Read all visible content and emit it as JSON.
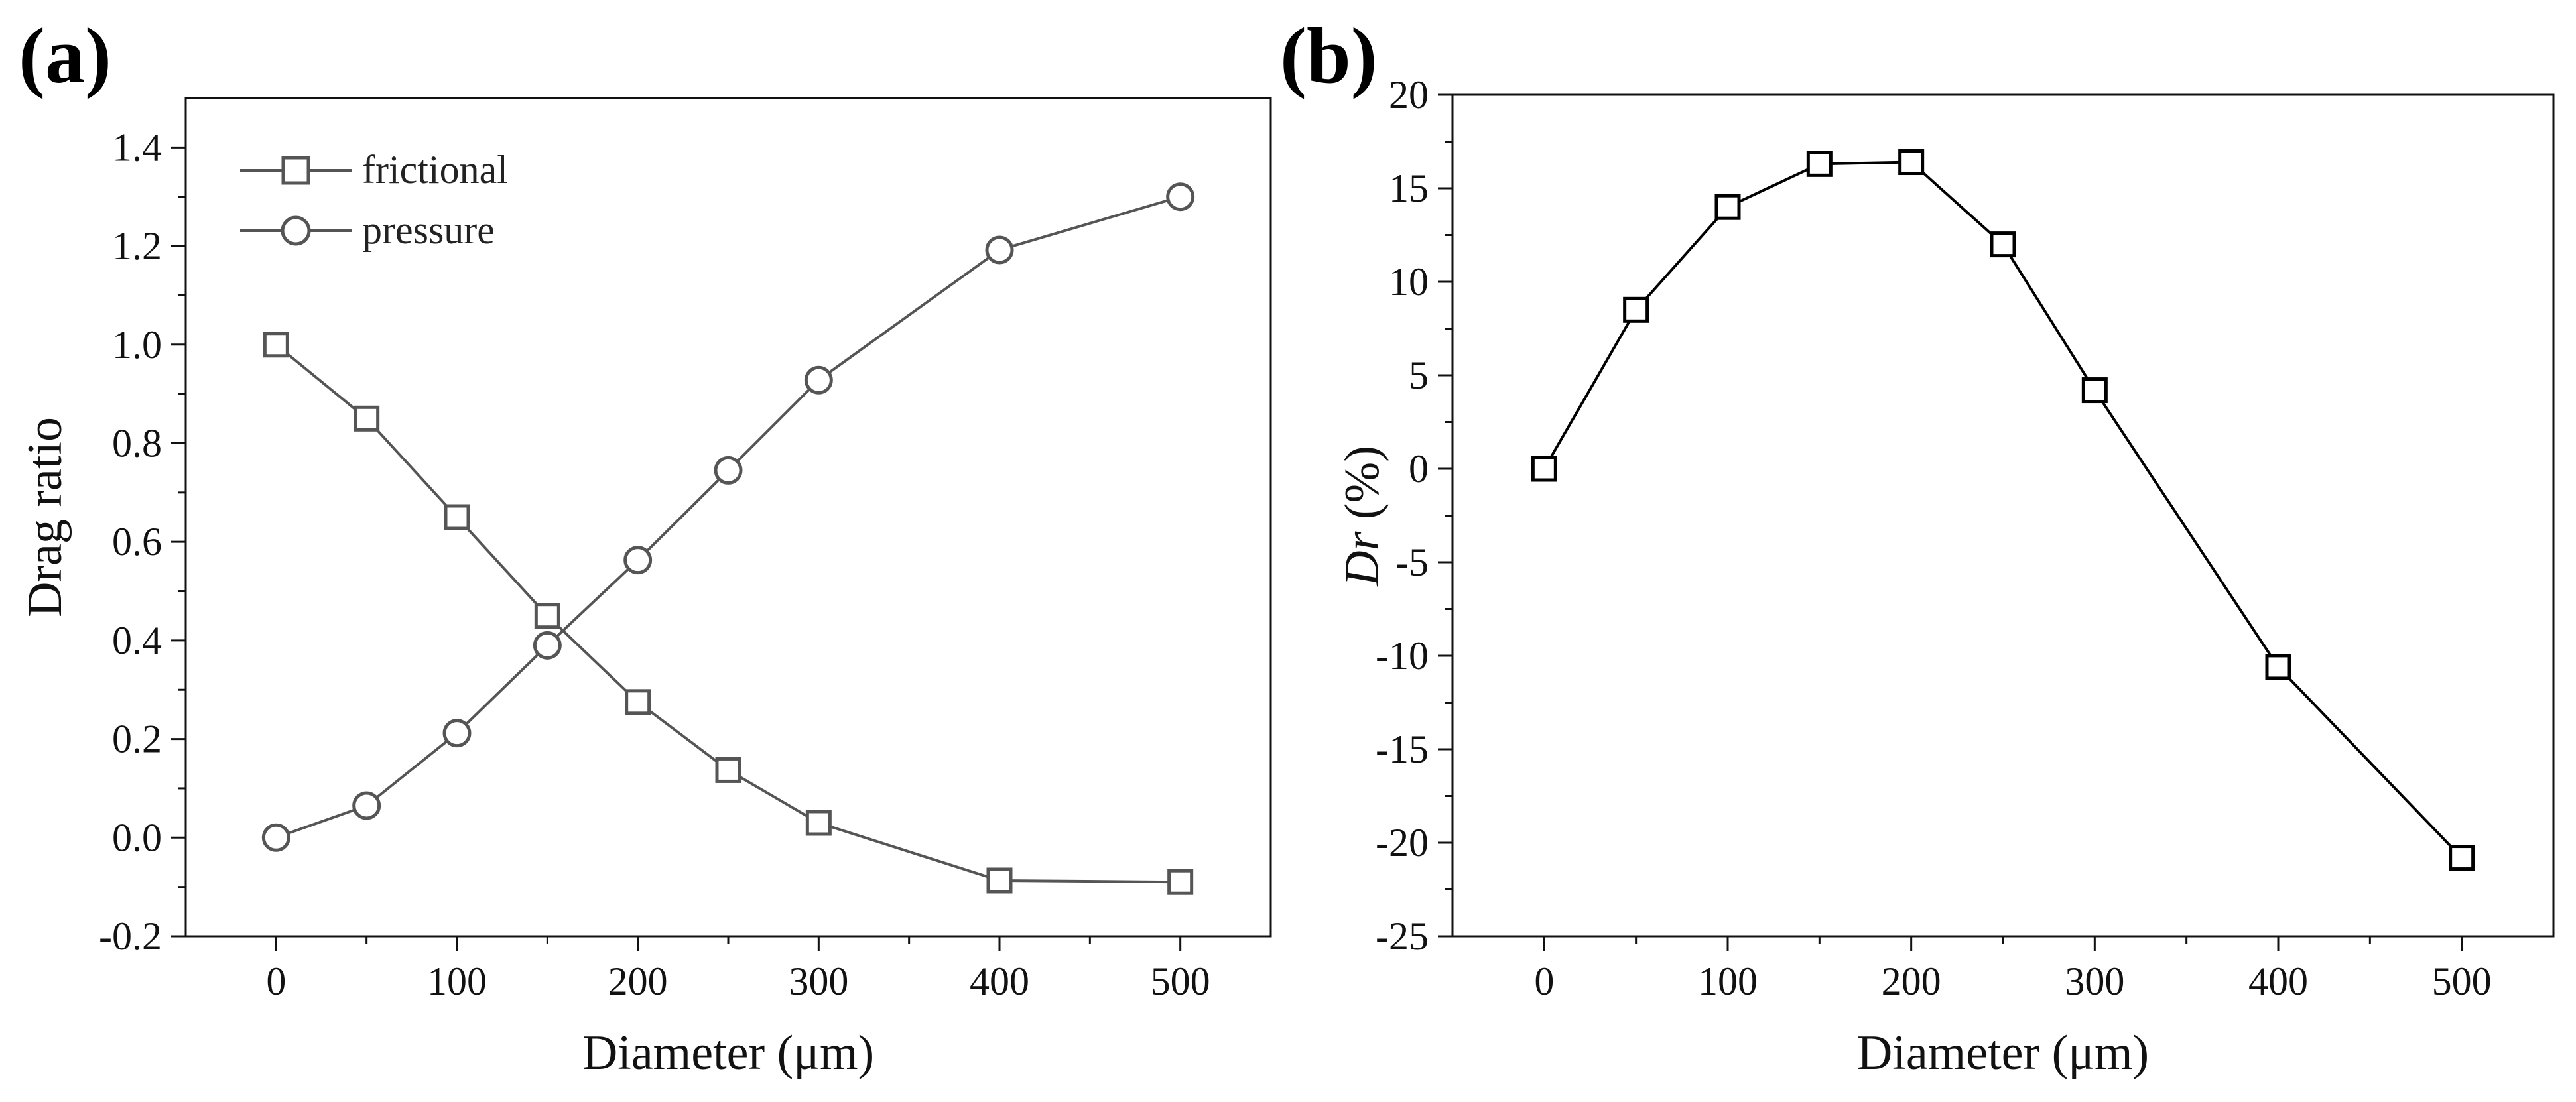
{
  "chart_data": [
    {
      "panel_label": "(a)",
      "type": "line",
      "xlabel": "Diameter (μm)",
      "ylabel": "Drag ratio",
      "xlim": [
        -50,
        550
      ],
      "ylim": [
        -0.2,
        1.5
      ],
      "x_ticks": [
        0,
        100,
        200,
        300,
        400,
        500
      ],
      "x_tick_labels": [
        "0",
        "100",
        "200",
        "300",
        "400",
        "500"
      ],
      "y_ticks": [
        -0.2,
        0.0,
        0.2,
        0.4,
        0.6,
        0.8,
        1.0,
        1.2,
        1.4
      ],
      "y_tick_labels": [
        "-0.2",
        "0.0",
        "0.2",
        "0.4",
        "0.6",
        "0.8",
        "1.0",
        "1.2",
        "1.4"
      ],
      "legend_position": "top-left",
      "x": [
        0,
        50,
        100,
        150,
        200,
        250,
        300,
        400,
        500
      ],
      "series": [
        {
          "name": "frictional",
          "marker": "square",
          "color": "#555555",
          "values": [
            1.0,
            0.85,
            0.65,
            0.45,
            0.275,
            0.137,
            0.03,
            -0.087,
            -0.09
          ]
        },
        {
          "name": "pressure",
          "marker": "circle",
          "color": "#555555",
          "values": [
            0.0,
            0.065,
            0.212,
            0.39,
            0.563,
            0.745,
            0.928,
            1.192,
            1.3
          ]
        }
      ]
    },
    {
      "panel_label": "(b)",
      "type": "line",
      "xlabel": "Diameter (μm)",
      "ylabel_italic": "Dr",
      "ylabel_rest": " (%)",
      "xlim": [
        -50,
        550
      ],
      "ylim": [
        -25,
        20
      ],
      "x_ticks": [
        0,
        100,
        200,
        300,
        400,
        500
      ],
      "x_tick_labels": [
        "0",
        "100",
        "200",
        "300",
        "400",
        "500"
      ],
      "y_ticks": [
        -25,
        -20,
        -15,
        -10,
        -5,
        0,
        5,
        10,
        15,
        20
      ],
      "y_tick_labels": [
        "-25",
        "-20",
        "-15",
        "-10",
        "-5",
        "0",
        "5",
        "10",
        "15",
        "20"
      ],
      "x": [
        0,
        50,
        100,
        150,
        200,
        250,
        300,
        400,
        500
      ],
      "series": [
        {
          "name": "Dr",
          "marker": "square",
          "color": "#000000",
          "values": [
            0.0,
            8.5,
            14.0,
            16.3,
            16.4,
            12.0,
            4.2,
            -10.6,
            -20.8
          ]
        }
      ]
    }
  ]
}
